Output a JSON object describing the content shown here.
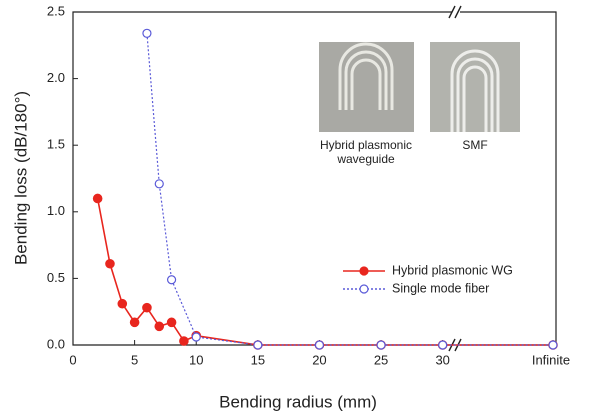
{
  "chart_data": {
    "type": "line",
    "x_label": "Bending radius (mm)",
    "y_label": "Bending loss (dB/180°)",
    "xlim": [
      0,
      31
    ],
    "xticks": [
      0,
      5,
      10,
      15,
      20,
      25,
      30,
      "Infinite"
    ],
    "ylim": [
      0,
      2.5
    ],
    "yticks": [
      {
        "value": 0,
        "label": "0.0"
      },
      0.5,
      {
        "value": 1,
        "label": "1.0"
      },
      1.5,
      {
        "value": 2,
        "label": "2.0"
      },
      2.5
    ],
    "legend": "lower right",
    "series": [
      {
        "name": "Hybrid plasmonic WG",
        "color": "#e8261e",
        "marker": "filled",
        "dash": "solid",
        "x": [
          2,
          3,
          4,
          5,
          6,
          7,
          8,
          9,
          10,
          15,
          20,
          25,
          30,
          "Infinite"
        ],
        "values": [
          1.1,
          0.61,
          0.31,
          0.17,
          0.28,
          0.14,
          0.17,
          0.03,
          0.07,
          0,
          0,
          0,
          0,
          0
        ]
      },
      {
        "name": "Single mode fiber",
        "color": "#5a5ad8",
        "marker": "open",
        "dash": "dotted",
        "x": [
          6,
          7,
          8,
          10,
          15,
          20,
          25,
          30,
          "Infinite"
        ],
        "values": [
          2.34,
          1.21,
          0.49,
          0.06,
          0,
          0,
          0,
          0,
          0
        ]
      }
    ],
    "insets": [
      {
        "lines": [
          "Hybrid plasmonic",
          "waveguide"
        ]
      },
      {
        "lines": [
          "SMF"
        ]
      }
    ]
  }
}
